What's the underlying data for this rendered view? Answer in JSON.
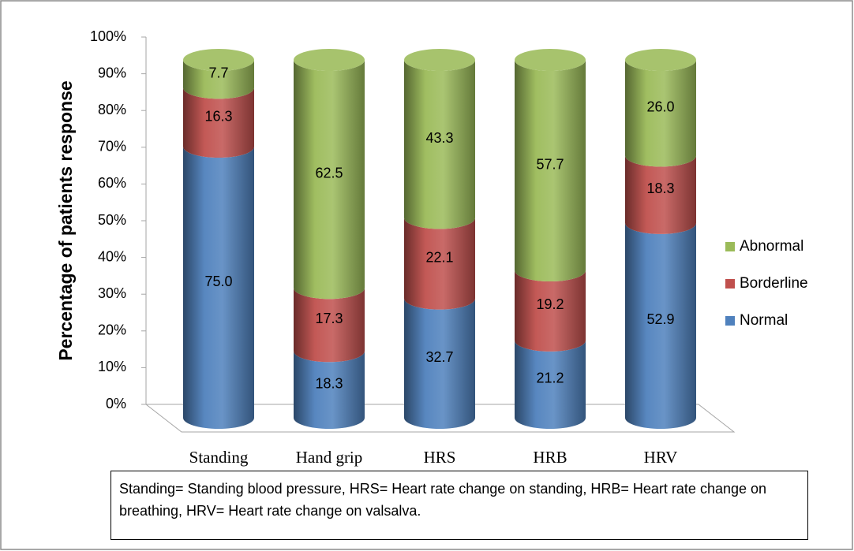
{
  "chart_data": {
    "type": "bar",
    "stack": "percent",
    "y_label": "Percentage of patients response",
    "categories": [
      "Standing",
      "Hand grip",
      "HRS",
      "HRB",
      "HRV"
    ],
    "series": [
      {
        "name": "Normal",
        "color": "#4f81bd",
        "values": [
          75.0,
          18.3,
          32.7,
          21.2,
          52.9
        ],
        "value_labels": [
          "75.0",
          "18.3",
          "32.7",
          "21.2",
          "52.9"
        ]
      },
      {
        "name": "Borderline",
        "color": "#c0504d",
        "values": [
          16.3,
          17.3,
          22.1,
          19.2,
          18.3
        ],
        "value_labels": [
          "16.3",
          "17.3",
          "22.1",
          "19.2",
          "18.3"
        ]
      },
      {
        "name": "Abnormal",
        "color": "#9bbb59",
        "values": [
          7.7,
          62.5,
          43.3,
          57.7,
          26.0
        ],
        "value_labels": [
          "7.7",
          "62.5",
          "43.3",
          "57.7",
          "26.0"
        ]
      }
    ],
    "ylim": [
      0,
      100
    ],
    "yticks": [
      {
        "value": 0,
        "label": "0%"
      },
      {
        "value": 10,
        "label": "10%"
      },
      {
        "value": 20,
        "label": "20%"
      },
      {
        "value": 30,
        "label": "30%"
      },
      {
        "value": 40,
        "label": "40%"
      },
      {
        "value": 50,
        "label": "50%"
      },
      {
        "value": 60,
        "label": "60%"
      },
      {
        "value": 70,
        "label": "70%"
      },
      {
        "value": 80,
        "label": "80%"
      },
      {
        "value": 90,
        "label": "90%"
      },
      {
        "value": 100,
        "label": "100%"
      }
    ],
    "legend": "right",
    "note": "Standing= Standing blood pressure, HRS= Heart rate change on standing, HRB= Heart rate change on breathing, HRV= Heart rate change on valsalva."
  }
}
